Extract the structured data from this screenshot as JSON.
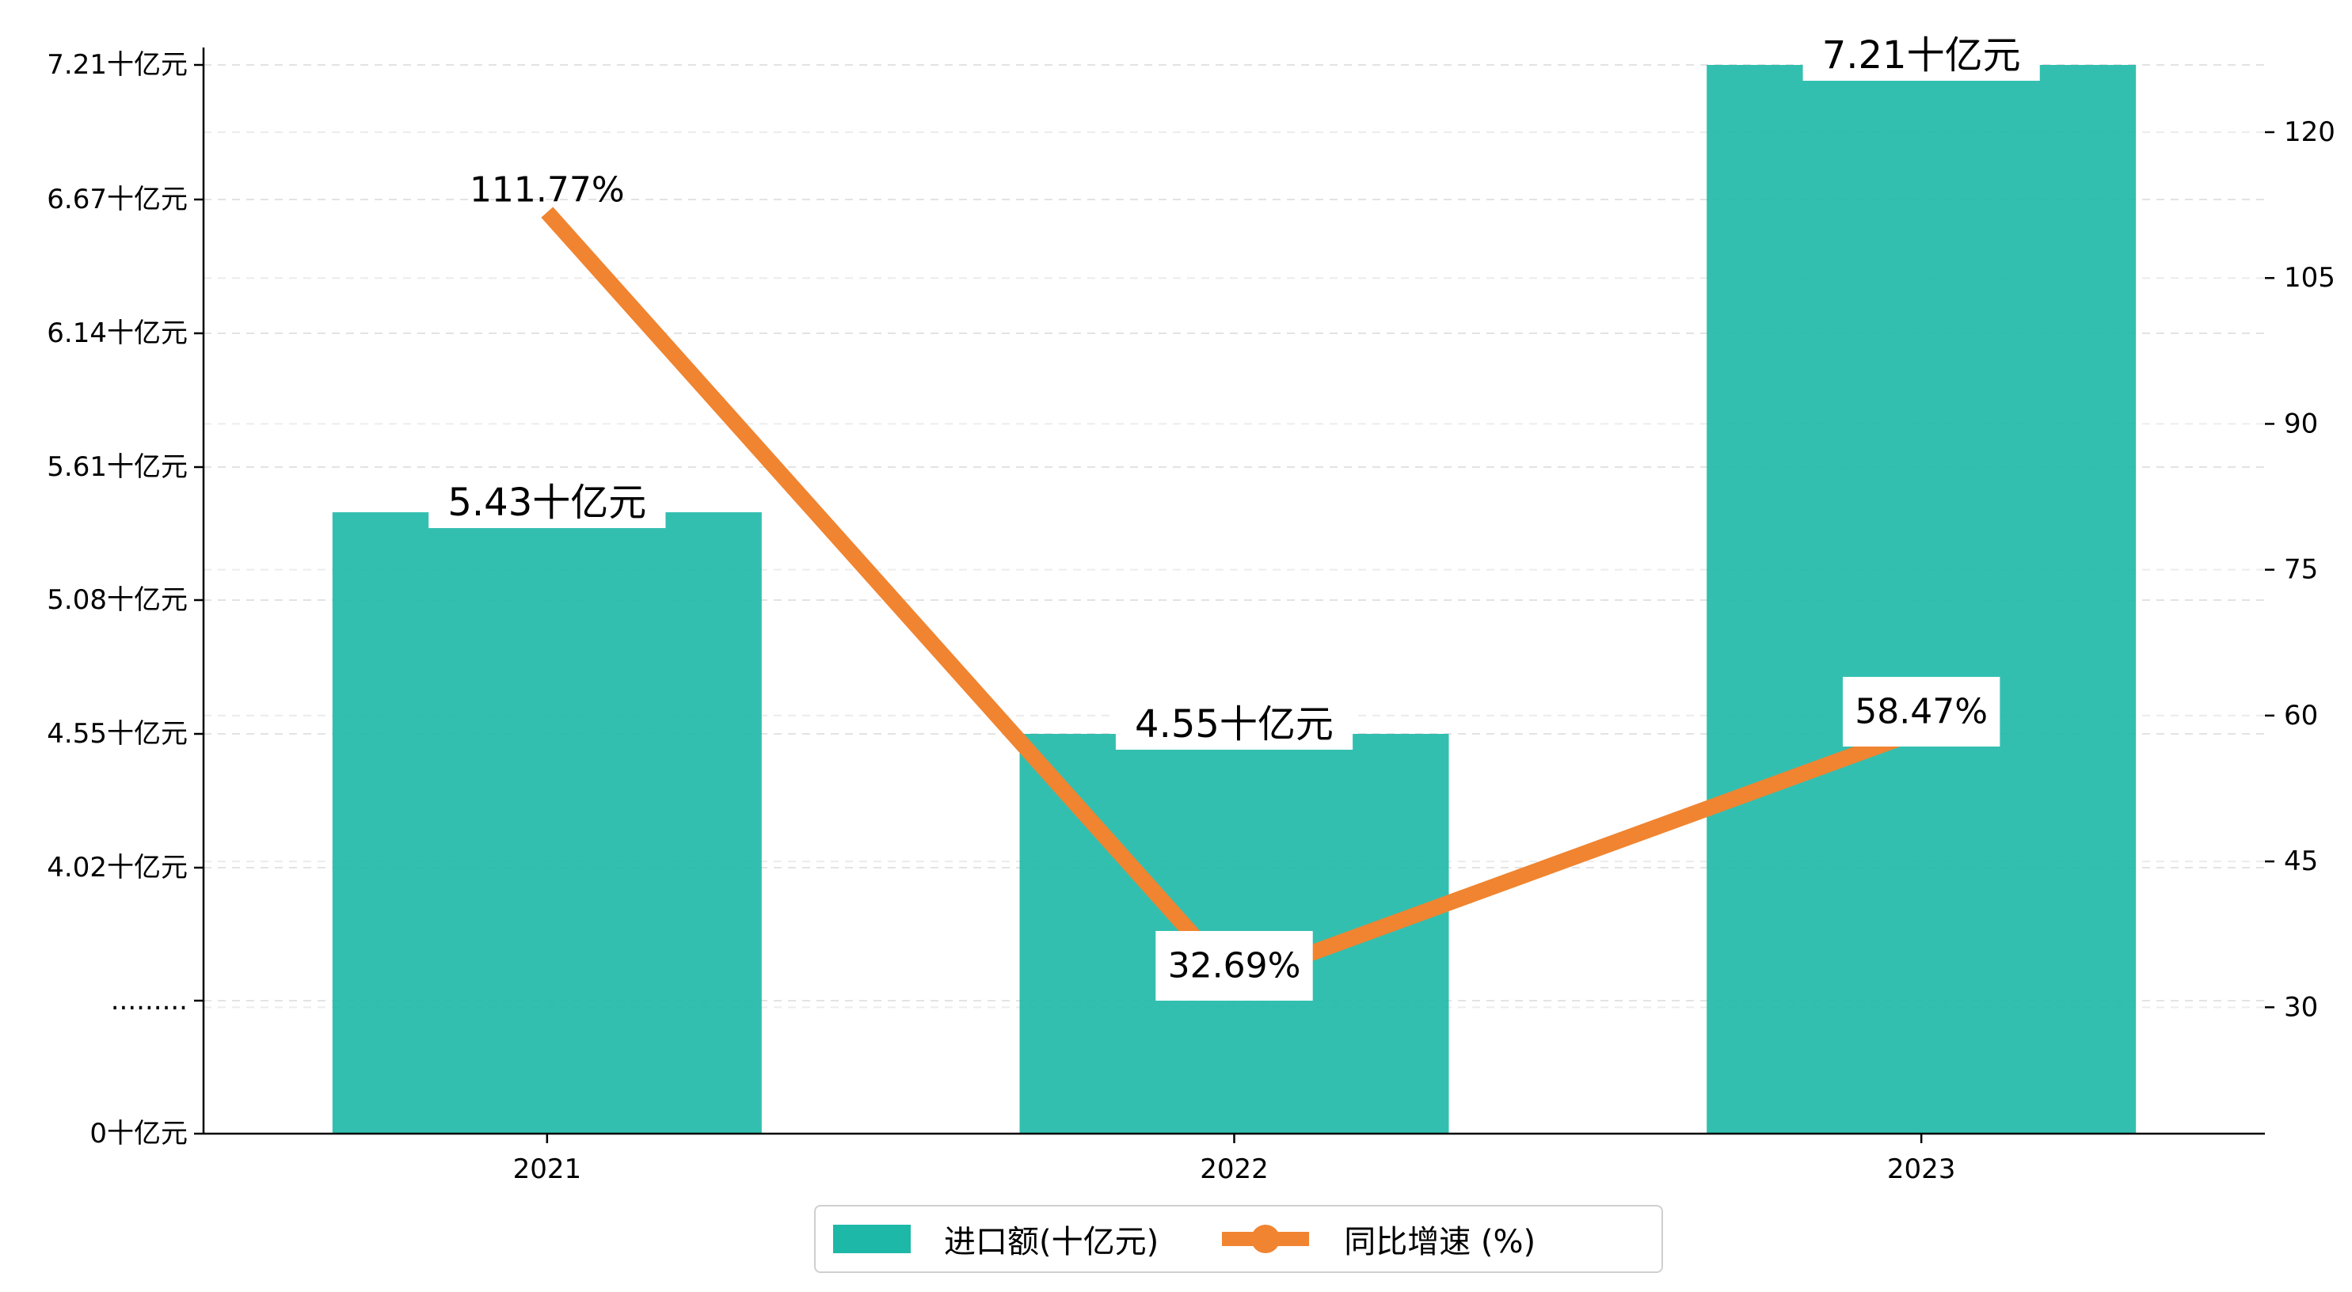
{
  "chart_data": {
    "type": "bar",
    "categories": [
      "2021",
      "2022",
      "2023"
    ],
    "series": [
      {
        "name": "进口额(十亿元)",
        "type": "bar",
        "axis": "left",
        "values": [
          5.43,
          4.55,
          7.21
        ],
        "data_labels": [
          "5.43十亿元",
          "4.55十亿元",
          "7.21十亿元"
        ],
        "color": "#1DB8A7"
      },
      {
        "name": "同比增速 (%)",
        "type": "line",
        "axis": "right",
        "values": [
          111.77,
          32.69,
          58.47
        ],
        "data_labels": [
          "111.77%",
          "32.69%",
          "58.47%"
        ],
        "color": "#F08430"
      }
    ],
    "y_left": {
      "ticks": [
        {
          "value": 0,
          "label": "0十亿元"
        },
        {
          "value": 3.49,
          "label": "........."
        },
        {
          "value": 4.02,
          "label": "4.02十亿元"
        },
        {
          "value": 4.55,
          "label": "4.55十亿元"
        },
        {
          "value": 5.08,
          "label": "5.08十亿元"
        },
        {
          "value": 5.61,
          "label": "5.61十亿元"
        },
        {
          "value": 6.14,
          "label": "6.14十亿元"
        },
        {
          "value": 6.67,
          "label": "6.67十亿元"
        },
        {
          "value": 7.21,
          "label": "7.21十亿元"
        }
      ],
      "broken_axis": true
    },
    "y_right": {
      "ticks": [
        30,
        45,
        60,
        75,
        90,
        105,
        120
      ],
      "ylim": [
        17,
        127
      ]
    },
    "grid": true,
    "grid_style": "dashed, horizontal",
    "legend_position": "bottom-center",
    "title": "",
    "xlabel": "",
    "ylabel": ""
  }
}
